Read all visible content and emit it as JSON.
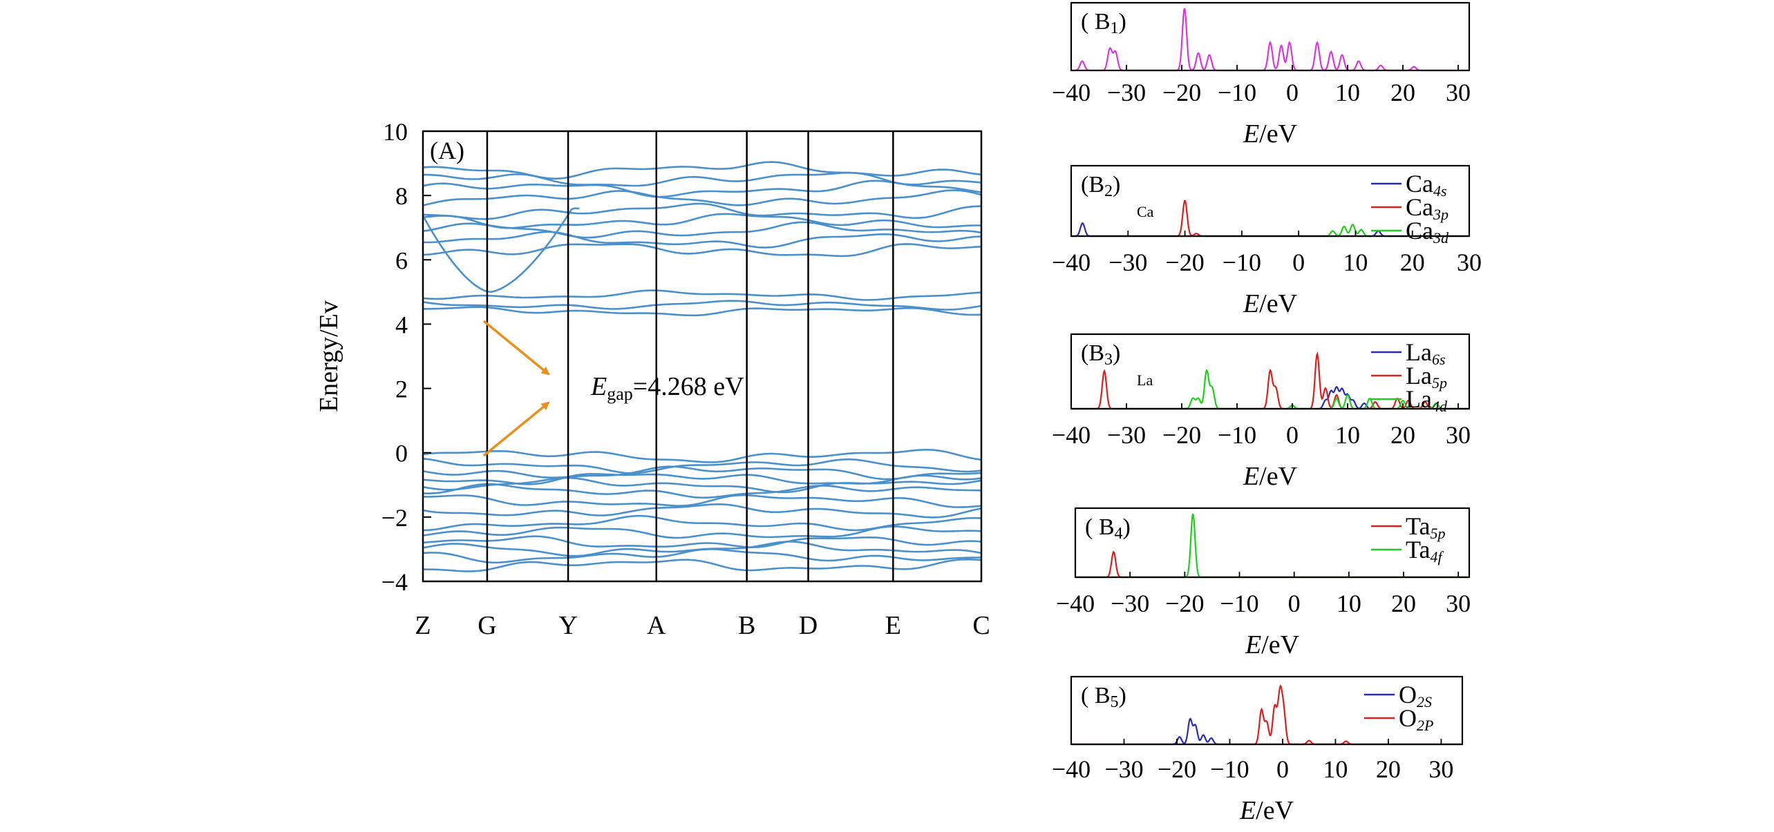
{
  "panels": {
    "A": {
      "label": "(A)",
      "ylabel": "Energy/Ev",
      "ylim": [
        -4,
        10
      ],
      "yticks": [
        -4,
        -2,
        0,
        2,
        4,
        6,
        8,
        10
      ],
      "kpoints": [
        "Z",
        "G",
        "Y",
        "A",
        "B",
        "D",
        "E",
        "C"
      ],
      "kpos": [
        0,
        0.115,
        0.26,
        0.418,
        0.58,
        0.69,
        0.842,
        1.0
      ],
      "gap_prefix": "E",
      "gap_sub": "gap",
      "gap_suffix": "=4.268 eV",
      "gap_value_eV": 4.268,
      "band_color": "#4a90cc",
      "arrow_color": "#e8901e"
    },
    "B1": {
      "label_main": "( B",
      "label_sub": "1",
      "label_close": ")",
      "element": "",
      "xlabel_var": "E",
      "xlabel_unit": "/eV"
    },
    "B2": {
      "label_main": "(B",
      "label_sub": "2",
      "label_close": ")",
      "element": "Ca",
      "xlabel_var": "E",
      "xlabel_unit": "/eV"
    },
    "B3": {
      "label_main": "(B",
      "label_sub": "3",
      "label_close": ")",
      "element": "La",
      "xlabel_var": "E",
      "xlabel_unit": "/eV"
    },
    "B4": {
      "label_main": "( B",
      "label_sub": "4",
      "label_close": ")",
      "element": "",
      "xlabel_var": "E",
      "xlabel_unit": "/eV"
    },
    "B5": {
      "label_main": "( B",
      "label_sub": "5",
      "label_close": ")",
      "element": "",
      "xlabel_var": "E",
      "xlabel_unit": "/eV"
    }
  },
  "chart_data": [
    {
      "type": "line",
      "panel": "A",
      "ylabel": "Energy/Ev",
      "ylim": [
        -4,
        10
      ],
      "x_categories": [
        "Z",
        "G",
        "Y",
        "A",
        "B",
        "D",
        "E",
        "C"
      ],
      "valence_band_levels": [
        -0.1,
        -0.4,
        -0.6,
        -0.8,
        -1.0,
        -1.2,
        -1.5,
        -1.8,
        -2.2,
        -2.5,
        -2.8,
        -3.0,
        -3.2,
        -3.5
      ],
      "conduction_band_levels": [
        4.4,
        4.6,
        4.9,
        6.3,
        6.6,
        6.9,
        7.2,
        7.5,
        7.9,
        8.2,
        8.5,
        8.8
      ],
      "band_gap_eV": 4.268
    },
    {
      "type": "line",
      "panel": "B1",
      "xlim": [
        -40,
        32
      ],
      "xticks": [
        -40,
        -30,
        -20,
        -10,
        0,
        10,
        20,
        30
      ],
      "series": [
        {
          "color": "#d838d8",
          "peaks": [
            [
              -38,
              0.15
            ],
            [
              -33,
              0.35
            ],
            [
              -32,
              0.3
            ],
            [
              -19.5,
              1.0
            ],
            [
              -17,
              0.28
            ],
            [
              -15,
              0.25
            ],
            [
              -4,
              0.45
            ],
            [
              -2,
              0.4
            ],
            [
              -0.5,
              0.45
            ],
            [
              4.5,
              0.45
            ],
            [
              7,
              0.3
            ],
            [
              9,
              0.25
            ],
            [
              12,
              0.15
            ],
            [
              16,
              0.08
            ],
            [
              22,
              0.06
            ]
          ]
        }
      ]
    },
    {
      "type": "line",
      "panel": "B2",
      "xlim": [
        -40,
        30
      ],
      "xticks": [
        -40,
        -30,
        -20,
        -10,
        0,
        10,
        20,
        30
      ],
      "series": [
        {
          "name": "Ca4s",
          "label_main": "Ca",
          "label_sub": "4s",
          "color": "#2a2ab8",
          "peaks": [
            [
              -38,
              0.2
            ],
            [
              14,
              0.08
            ]
          ]
        },
        {
          "name": "Ca3p",
          "label_main": "Ca",
          "label_sub": "3p",
          "color": "#d82020",
          "peaks": [
            [
              -20,
              0.55
            ],
            [
              -18,
              0.04
            ]
          ]
        },
        {
          "name": "Ca3d",
          "label_main": "Ca",
          "label_sub": "3d",
          "color": "#22cc22",
          "peaks": [
            [
              6,
              0.08
            ],
            [
              8,
              0.15
            ],
            [
              9.5,
              0.18
            ],
            [
              11,
              0.1
            ]
          ]
        }
      ]
    },
    {
      "type": "line",
      "panel": "B3",
      "xlim": [
        -40,
        32
      ],
      "xticks": [
        -40,
        -30,
        -20,
        -10,
        0,
        10,
        20,
        30
      ],
      "series": [
        {
          "name": "La6s",
          "label_main": "La",
          "label_sub": "6s",
          "color": "#2a2ab8",
          "peaks": [
            [
              6,
              0.12
            ],
            [
              7,
              0.25
            ],
            [
              8,
              0.3
            ],
            [
              9,
              0.28
            ],
            [
              10,
              0.2
            ],
            [
              11,
              0.12
            ],
            [
              13,
              0.08
            ]
          ]
        },
        {
          "name": "La5p",
          "label_main": "La",
          "label_sub": "5p",
          "color": "#d82020",
          "peaks": [
            [
              -34,
              0.55
            ],
            [
              -4,
              0.55
            ],
            [
              -3,
              0.3
            ],
            [
              4.5,
              0.8
            ],
            [
              6,
              0.3
            ],
            [
              8,
              0.2
            ],
            [
              15,
              0.1
            ],
            [
              19,
              0.15
            ],
            [
              21,
              0.12
            ],
            [
              24,
              0.1
            ]
          ]
        },
        {
          "name": "La4d",
          "label_main": "La",
          "label_sub": "4d",
          "color": "#22cc22",
          "peaks": [
            [
              -18,
              0.15
            ],
            [
              -17,
              0.15
            ],
            [
              -15.5,
              0.55
            ],
            [
              -14.5,
              0.3
            ],
            [
              0,
              0.05
            ],
            [
              8,
              0.15
            ],
            [
              10,
              0.2
            ],
            [
              14,
              0.15
            ],
            [
              20,
              0.12
            ],
            [
              26,
              0.08
            ]
          ]
        }
      ]
    },
    {
      "type": "line",
      "panel": "B4",
      "xlim": [
        -40,
        32
      ],
      "xticks": [
        -40,
        -30,
        -20,
        -10,
        0,
        10,
        20,
        30
      ],
      "series": [
        {
          "name": "Ta5p",
          "label_main": "Ta",
          "label_sub": "5p",
          "color": "#d82020",
          "peaks": [
            [
              -33,
              0.4
            ]
          ]
        },
        {
          "name": "Ta4f",
          "label_main": "Ta",
          "label_sub": "4f",
          "color": "#22cc22",
          "peaks": [
            [
              -18.5,
              1.0
            ]
          ]
        }
      ]
    },
    {
      "type": "line",
      "panel": "B5",
      "xlim": [
        -40,
        34
      ],
      "xticks": [
        -40,
        -30,
        -20,
        -10,
        0,
        10,
        20,
        30
      ],
      "series": [
        {
          "name": "O2S",
          "label_main": "O",
          "label_sub": "2S",
          "color": "#2a2ab8",
          "peaks": [
            [
              -19.5,
              0.12
            ],
            [
              -17.5,
              0.4
            ],
            [
              -16.5,
              0.3
            ],
            [
              -15,
              0.15
            ],
            [
              -13.5,
              0.1
            ]
          ]
        },
        {
          "name": "O2P",
          "label_main": "O",
          "label_sub": "2P",
          "color": "#d82020",
          "peaks": [
            [
              -4,
              0.55
            ],
            [
              -3,
              0.35
            ],
            [
              -1.5,
              0.6
            ],
            [
              -0.5,
              0.8
            ],
            [
              0.2,
              0.5
            ],
            [
              5,
              0.06
            ],
            [
              12,
              0.05
            ]
          ]
        }
      ]
    }
  ]
}
